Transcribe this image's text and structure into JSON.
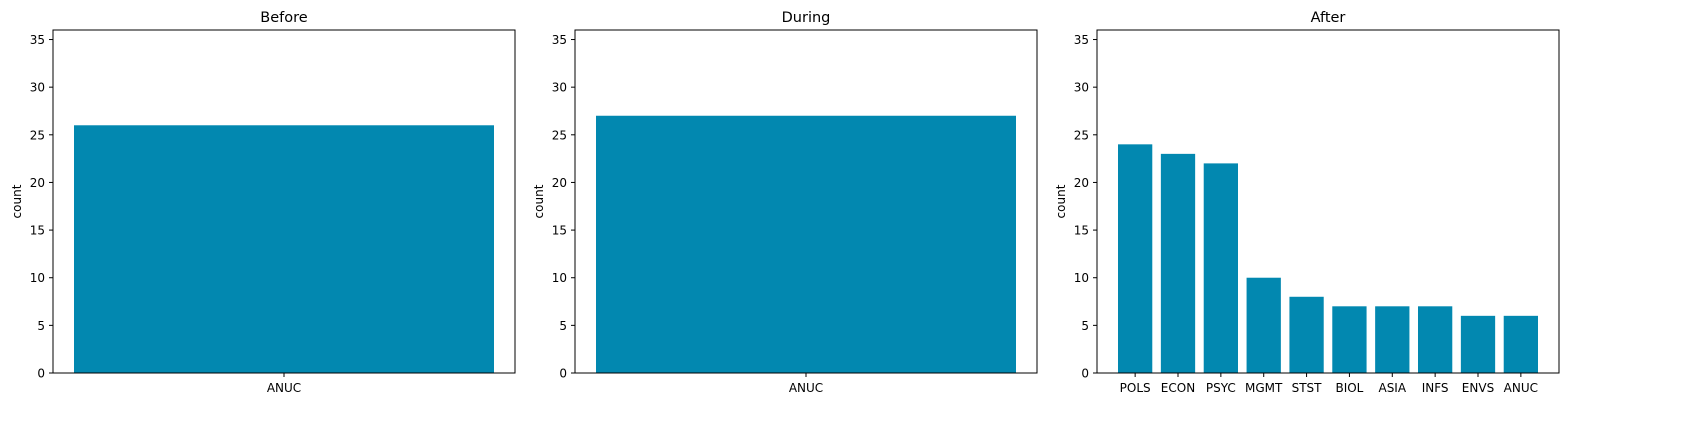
{
  "chart_data": [
    {
      "type": "bar",
      "title": "Before",
      "xlabel": "",
      "ylabel": "count",
      "ylim": [
        0,
        36
      ],
      "yticks": [
        0,
        5,
        10,
        15,
        20,
        25,
        30,
        35
      ],
      "grid": false,
      "color": "#0288b0",
      "categories": [
        "ANUC"
      ],
      "values": [
        26
      ]
    },
    {
      "type": "bar",
      "title": "During",
      "xlabel": "",
      "ylabel": "count",
      "ylim": [
        0,
        36
      ],
      "yticks": [
        0,
        5,
        10,
        15,
        20,
        25,
        30,
        35
      ],
      "grid": false,
      "color": "#0288b0",
      "categories": [
        "ANUC"
      ],
      "values": [
        27
      ]
    },
    {
      "type": "bar",
      "title": "After",
      "xlabel": "",
      "ylabel": "count",
      "ylim": [
        0,
        36
      ],
      "yticks": [
        0,
        5,
        10,
        15,
        20,
        25,
        30,
        35
      ],
      "grid": false,
      "color": "#0288b0",
      "categories": [
        "POLS",
        "ECON",
        "PSYC",
        "MGMT",
        "STST",
        "BIOL",
        "ASIA",
        "INFS",
        "ENVS",
        "ANUC"
      ],
      "values": [
        24,
        23,
        22,
        10,
        8,
        7,
        7,
        7,
        6,
        6
      ]
    }
  ]
}
